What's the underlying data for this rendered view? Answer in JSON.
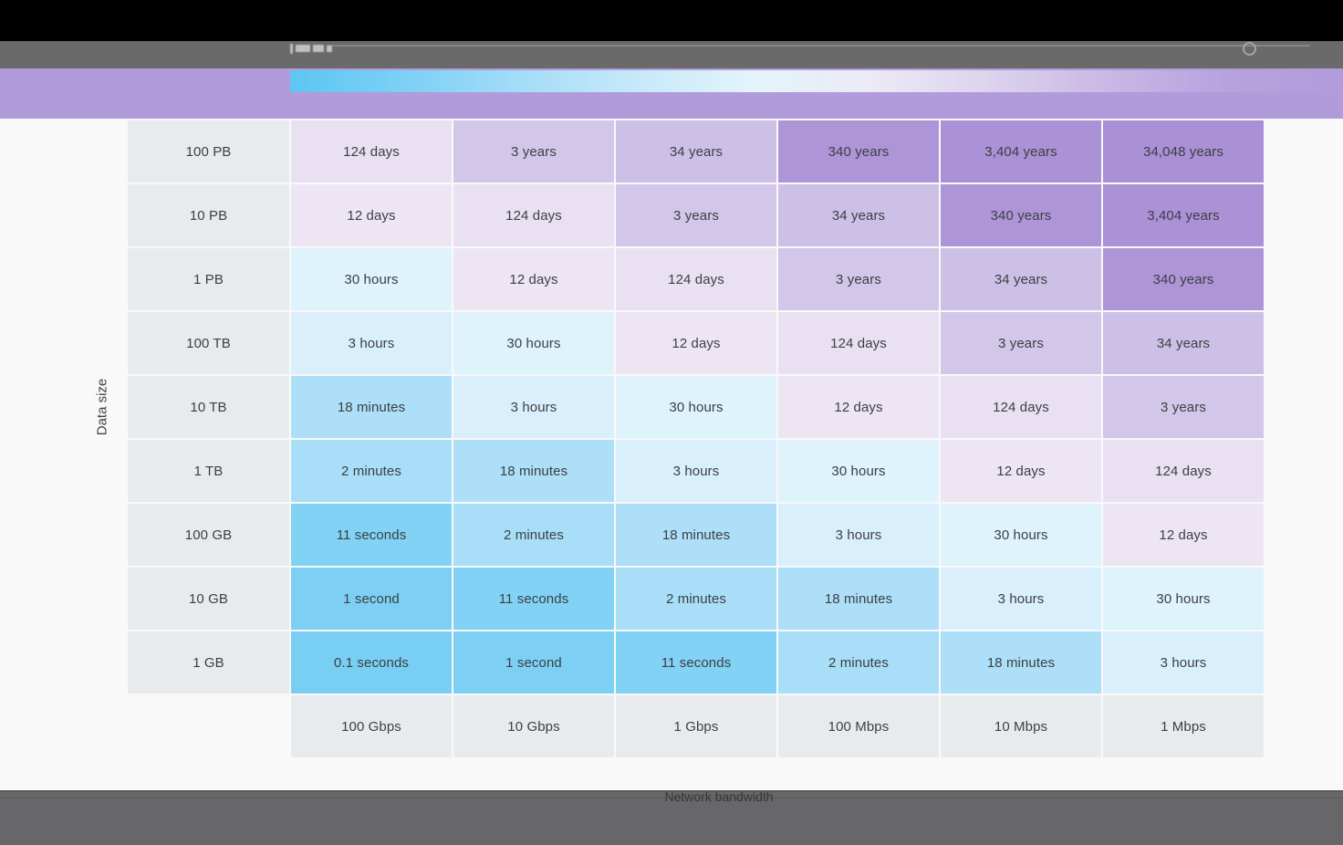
{
  "chrome": {
    "top_bar_color": "#000000",
    "toolbar_color": "#6a6a6a",
    "banner_color": "#b29bda",
    "footer_color": "#67676a",
    "page_background": "#f9f9fa"
  },
  "legend": {
    "gradient_stops": [
      "#5dc6f2",
      "#7dd0f5",
      "#a5ddf8",
      "#c8e9fa",
      "#e4f4fc",
      "#ece9f6",
      "#dcd2ed",
      "#c9b8e5",
      "#b7a2de",
      "#b29bda"
    ]
  },
  "chart_data": {
    "type": "heatmap",
    "title": "",
    "xlabel": "Network bandwidth",
    "ylabel": "Data size",
    "legend_position": "top",
    "grid": false,
    "columns": [
      "100 Gbps",
      "10 Gbps",
      "1 Gbps",
      "100 Mbps",
      "10 Mbps",
      "1 Mbps"
    ],
    "rows": [
      "100 PB",
      "10 PB",
      "1 PB",
      "100 TB",
      "10 TB",
      "1 TB",
      "100 GB",
      "10 GB",
      "1 GB"
    ],
    "values": [
      [
        "124 days",
        "3 years",
        "34 years",
        "340 years",
        "3,404 years",
        "34,048 years"
      ],
      [
        "12 days",
        "124 days",
        "3 years",
        "34 years",
        "340 years",
        "3,404 years"
      ],
      [
        "30 hours",
        "12 days",
        "124 days",
        "3 years",
        "34 years",
        "340 years"
      ],
      [
        "3 hours",
        "30 hours",
        "12 days",
        "124 days",
        "3 years",
        "34 years"
      ],
      [
        "18 minutes",
        "3 hours",
        "30 hours",
        "12 days",
        "124 days",
        "3 years"
      ],
      [
        "2 minutes",
        "18 minutes",
        "3 hours",
        "30 hours",
        "12 days",
        "124 days"
      ],
      [
        "11 seconds",
        "2 minutes",
        "18 minutes",
        "3 hours",
        "30 hours",
        "12 days"
      ],
      [
        "1 second",
        "11 seconds",
        "2 minutes",
        "18 minutes",
        "3 hours",
        "30 hours"
      ],
      [
        "0.1 seconds",
        "1 second",
        "11 seconds",
        "2 minutes",
        "18 minutes",
        "3 hours"
      ]
    ],
    "cell_colors": {
      "0.1 seconds": "#79cef3",
      "1 second": "#7dd0f4",
      "11 seconds": "#81d2f5",
      "2 minutes": "#a8def8",
      "18 minutes": "#addff8",
      "3 hours": "#d9effb",
      "30 hours": "#def3fb",
      "12 days": "#ede5f3",
      "124 days": "#e9e0f1",
      "3 years": "#d2c6e9",
      "34 years": "#cdc0e6",
      "340 years": "#ae95d8",
      "3,404 years": "#ab91d5",
      "34,048 years": "#aa90d4"
    },
    "label_cell_color": "#e8ebee",
    "text_color": "#3c4043"
  }
}
